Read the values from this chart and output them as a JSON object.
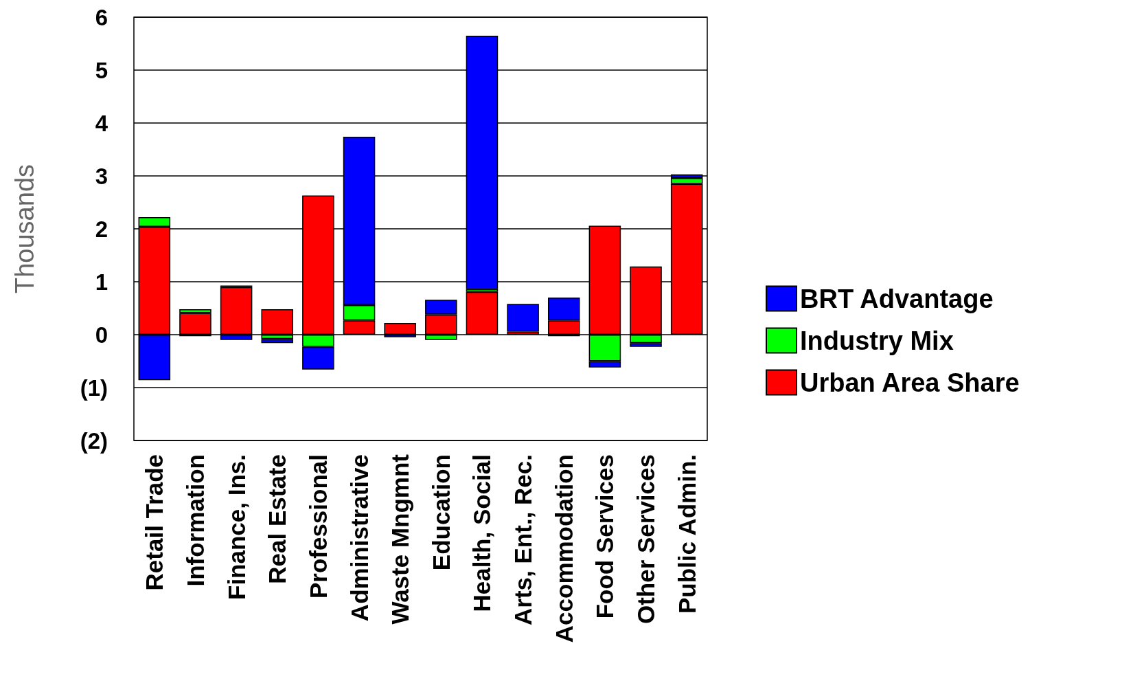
{
  "chart_data": {
    "type": "bar",
    "stacked": true,
    "ylabel": "Thousands",
    "categories": [
      "Retail Trade",
      "Information",
      "Finance, Ins.",
      "Real Estate",
      "Professional",
      "Administrative",
      "Waste Mngmnt",
      "Education",
      "Health, Social",
      "Arts, Ent., Rec.",
      "Accommodation",
      "Food Services",
      "Other Services",
      "Public Admin."
    ],
    "series": [
      {
        "name": "Urban Area Share",
        "color": "#ff0000",
        "values": [
          2.04,
          0.41,
          0.9,
          0.48,
          2.63,
          0.27,
          0.22,
          0.38,
          0.81,
          0.06,
          0.27,
          2.06,
          1.29,
          2.85
        ]
      },
      {
        "name": "Industry Mix",
        "color": "#00ff00",
        "values": [
          0.18,
          0.07,
          0.03,
          -0.08,
          -0.23,
          0.29,
          null,
          -0.1,
          0.05,
          null,
          -0.03,
          -0.5,
          -0.16,
          0.11
        ]
      },
      {
        "name": "BRT Advantage",
        "color": "#0000ff",
        "values": [
          -0.86,
          -0.03,
          -0.1,
          -0.08,
          -0.43,
          3.18,
          -0.05,
          0.28,
          4.79,
          0.52,
          0.43,
          -0.12,
          -0.07,
          0.07
        ]
      }
    ],
    "ylim": [
      -2,
      6
    ],
    "yticks": [
      {
        "value": -2,
        "label": "(2)"
      },
      {
        "value": -1,
        "label": "(1)"
      },
      0,
      1,
      2,
      3,
      4,
      5,
      6
    ],
    "grid": "y",
    "legend": "right"
  }
}
